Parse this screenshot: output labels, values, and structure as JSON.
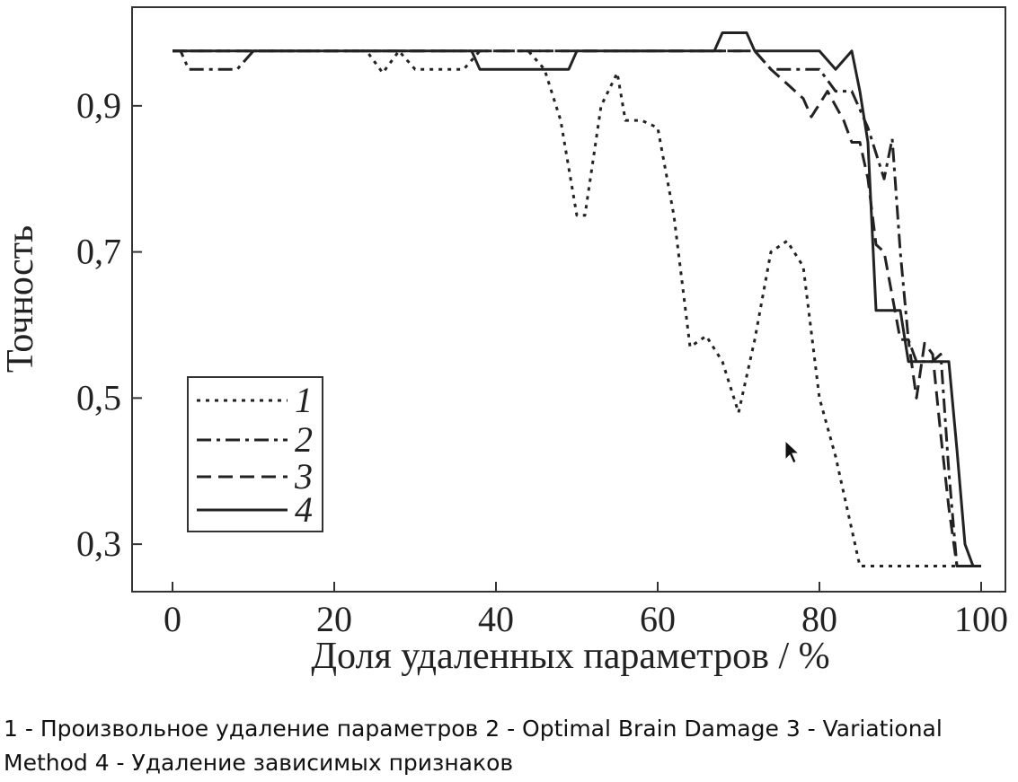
{
  "chart_data": {
    "type": "line",
    "title": "",
    "xlabel": "Доля удаленных параметров / %",
    "ylabel": "Точность",
    "xlim": [
      -5,
      103
    ],
    "ylim": [
      0.235,
      1.035
    ],
    "xticks": [
      0,
      20,
      40,
      60,
      80,
      100
    ],
    "xtick_labels": [
      "0",
      "20",
      "40",
      "60",
      "80",
      "100"
    ],
    "yticks": [
      0.3,
      0.5,
      0.7,
      0.9
    ],
    "ytick_labels": [
      "0,3",
      "0,5",
      "0,7",
      "0,9"
    ],
    "grid": false,
    "legend_position": "bottom-left",
    "series": [
      {
        "name": "1",
        "style": "dotted",
        "x": [
          0,
          24,
          26,
          28,
          30,
          36,
          38,
          44,
          46,
          48,
          50,
          51,
          53,
          55,
          56,
          58,
          60,
          62,
          64,
          66,
          68,
          70,
          72,
          74,
          76,
          78,
          80,
          82,
          84,
          85,
          90,
          100
        ],
        "y": [
          0.975,
          0.975,
          0.945,
          0.975,
          0.95,
          0.95,
          0.975,
          0.975,
          0.95,
          0.88,
          0.75,
          0.75,
          0.9,
          0.945,
          0.88,
          0.88,
          0.87,
          0.75,
          0.57,
          0.585,
          0.55,
          0.48,
          0.58,
          0.7,
          0.715,
          0.68,
          0.5,
          0.42,
          0.32,
          0.27,
          0.27,
          0.27
        ]
      },
      {
        "name": "2",
        "style": "dash-dot",
        "x": [
          0,
          1,
          2,
          7,
          8,
          10,
          11,
          70,
          72,
          74,
          76,
          78,
          80,
          82,
          84,
          86,
          88,
          89,
          90,
          91,
          92,
          94,
          95,
          96,
          97,
          100
        ],
        "y": [
          0.975,
          0.975,
          0.95,
          0.95,
          0.95,
          0.975,
          0.975,
          0.975,
          0.975,
          0.95,
          0.95,
          0.95,
          0.95,
          0.92,
          0.92,
          0.87,
          0.8,
          0.855,
          0.7,
          0.58,
          0.55,
          0.55,
          0.56,
          0.4,
          0.27,
          0.27
        ]
      },
      {
        "name": "3",
        "style": "dashed",
        "x": [
          0,
          72,
          74,
          76,
          78,
          79,
          81,
          83,
          84,
          85,
          86,
          87,
          88,
          90,
          91,
          92,
          93,
          94,
          95,
          96,
          97,
          100
        ],
        "y": [
          0.975,
          0.975,
          0.95,
          0.93,
          0.91,
          0.885,
          0.92,
          0.88,
          0.85,
          0.85,
          0.8,
          0.71,
          0.7,
          0.58,
          0.58,
          0.5,
          0.575,
          0.56,
          0.45,
          0.35,
          0.27,
          0.27
        ]
      },
      {
        "name": "4",
        "style": "solid",
        "x": [
          0,
          37,
          38,
          48,
          49,
          50,
          67,
          68,
          70,
          71,
          72,
          80,
          82,
          84,
          85,
          86,
          87,
          88,
          89,
          90,
          91,
          92,
          95,
          96,
          97,
          98,
          99,
          100
        ],
        "y": [
          0.975,
          0.975,
          0.95,
          0.95,
          0.95,
          0.975,
          0.975,
          1.0,
          1.0,
          1.0,
          0.975,
          0.975,
          0.95,
          0.975,
          0.92,
          0.85,
          0.62,
          0.62,
          0.62,
          0.62,
          0.55,
          0.55,
          0.55,
          0.55,
          0.43,
          0.3,
          0.27,
          0.27
        ]
      }
    ]
  },
  "legend": {
    "items": [
      {
        "label": "1"
      },
      {
        "label": "2"
      },
      {
        "label": "3"
      },
      {
        "label": "4"
      }
    ]
  },
  "caption": {
    "text": "1 - Произвольное удаление параметров 2 - Optimal Brain Damage 3 - Variational Method 4 - Удаление зависимых признаков"
  },
  "colors": {
    "line": "#222222",
    "background": "#ffffff"
  },
  "icons": {
    "cursor": "mouse-pointer-icon"
  }
}
